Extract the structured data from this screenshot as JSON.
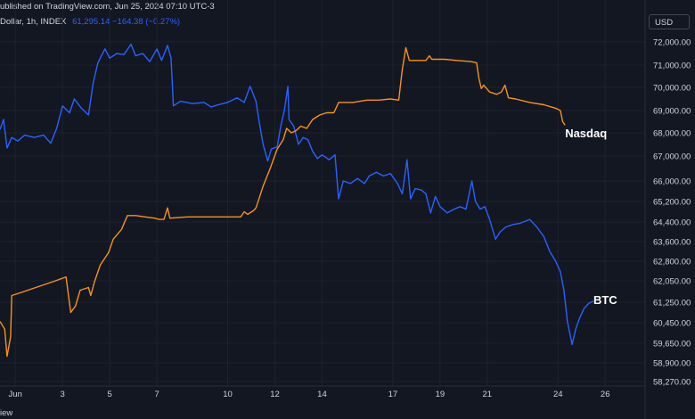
{
  "header": {
    "published": "ublished on TradingView.com, Jun 25, 2024 07:10 UTC-3",
    "instrument": "Dollar, 1h, INDEX",
    "values": "61,295.14  −164.38 (−0.27%)",
    "currency": "USD"
  },
  "footer": {
    "label": "iew"
  },
  "colors": {
    "background": "#131722",
    "grid": "#1e222d",
    "btc": "#2962ff",
    "nasdaq": "#f7931a",
    "text": "#d1d4dc"
  },
  "chart_data": {
    "type": "line",
    "title": "",
    "xlabel": "",
    "ylabel": "",
    "grid": true,
    "x_ticks": [
      "Jun",
      "3",
      "5",
      "7",
      "10",
      "12",
      "14",
      "17",
      "19",
      "21",
      "24",
      "26"
    ],
    "x_tick_days": [
      1,
      3,
      5,
      7,
      10,
      12,
      14,
      17,
      19,
      21,
      24,
      26
    ],
    "x_range_days": [
      0.35,
      26.3
    ],
    "y_ticks": [
      "72,000.00",
      "71,000.00",
      "70,000.00",
      "69,000.00",
      "68,000.00",
      "67,000.00",
      "66,000.00",
      "65,200.00",
      "64,400.00",
      "63,600.00",
      "62,800.00",
      "62,050.00",
      "61,250.00",
      "60,450.00",
      "59,650.00",
      "58,900.00",
      "58,270.00"
    ],
    "y_tick_values": [
      72000,
      71000,
      70000,
      69000,
      68000,
      67000,
      66000,
      65200,
      64400,
      63600,
      62800,
      62050,
      61250,
      60450,
      59650,
      58900,
      58270
    ],
    "annotations": [
      {
        "text": "Nasdaq",
        "x": 24.3,
        "y": 67960
      },
      {
        "text": "BTC",
        "x": 25.5,
        "y": 61320
      }
    ],
    "series": [
      {
        "key": "btc",
        "points": [
          [
            0.35,
            68150
          ],
          [
            0.5,
            68600
          ],
          [
            0.65,
            67350
          ],
          [
            0.85,
            67800
          ],
          [
            1.1,
            67650
          ],
          [
            1.4,
            67900
          ],
          [
            1.8,
            67800
          ],
          [
            2.2,
            67900
          ],
          [
            2.5,
            67550
          ],
          [
            2.75,
            68200
          ],
          [
            3.0,
            69200
          ],
          [
            3.3,
            68900
          ],
          [
            3.5,
            69500
          ],
          [
            3.8,
            69100
          ],
          [
            4.1,
            68800
          ],
          [
            4.3,
            70200
          ],
          [
            4.5,
            71100
          ],
          [
            4.8,
            71700
          ],
          [
            5.0,
            71300
          ],
          [
            5.3,
            71500
          ],
          [
            5.6,
            71450
          ],
          [
            5.9,
            71900
          ],
          [
            6.1,
            71400
          ],
          [
            6.4,
            71500
          ],
          [
            6.7,
            71150
          ],
          [
            7.0,
            71700
          ],
          [
            7.2,
            71200
          ],
          [
            7.45,
            71850
          ],
          [
            7.6,
            71300
          ],
          [
            7.7,
            69200
          ],
          [
            8.0,
            69400
          ],
          [
            8.5,
            69300
          ],
          [
            9.0,
            69350
          ],
          [
            9.3,
            69150
          ],
          [
            9.6,
            69250
          ],
          [
            10.0,
            69350
          ],
          [
            10.4,
            69550
          ],
          [
            10.7,
            69350
          ],
          [
            10.95,
            70050
          ],
          [
            11.2,
            69400
          ],
          [
            11.35,
            68400
          ],
          [
            11.5,
            67500
          ],
          [
            11.7,
            66800
          ],
          [
            11.85,
            67300
          ],
          [
            12.1,
            67400
          ],
          [
            12.25,
            68300
          ],
          [
            12.4,
            69000
          ],
          [
            12.55,
            70050
          ],
          [
            12.6,
            68600
          ],
          [
            12.8,
            68300
          ],
          [
            13.0,
            67500
          ],
          [
            13.2,
            67800
          ],
          [
            13.4,
            67700
          ],
          [
            13.6,
            67200
          ],
          [
            13.8,
            66900
          ],
          [
            14.0,
            67050
          ],
          [
            14.3,
            66850
          ],
          [
            14.55,
            67050
          ],
          [
            14.7,
            65300
          ],
          [
            14.9,
            66000
          ],
          [
            15.2,
            65900
          ],
          [
            15.5,
            66100
          ],
          [
            15.8,
            65900
          ],
          [
            16.0,
            66200
          ],
          [
            16.3,
            66350
          ],
          [
            16.6,
            66200
          ],
          [
            16.9,
            66300
          ],
          [
            17.2,
            65900
          ],
          [
            17.4,
            65500
          ],
          [
            17.6,
            66850
          ],
          [
            17.75,
            65300
          ],
          [
            17.95,
            65700
          ],
          [
            18.2,
            65650
          ],
          [
            18.4,
            65500
          ],
          [
            18.6,
            64750
          ],
          [
            18.8,
            65400
          ],
          [
            19.0,
            65000
          ],
          [
            19.3,
            64750
          ],
          [
            19.6,
            64900
          ],
          [
            19.85,
            65000
          ],
          [
            20.1,
            64900
          ],
          [
            20.35,
            66000
          ],
          [
            20.5,
            65200
          ],
          [
            20.7,
            64900
          ],
          [
            20.9,
            65000
          ],
          [
            21.1,
            64500
          ],
          [
            21.35,
            63700
          ],
          [
            21.55,
            64000
          ],
          [
            21.8,
            64200
          ],
          [
            22.1,
            64300
          ],
          [
            22.4,
            64350
          ],
          [
            22.8,
            64500
          ],
          [
            23.1,
            64200
          ],
          [
            23.4,
            63800
          ],
          [
            23.65,
            63200
          ],
          [
            23.9,
            62800
          ],
          [
            24.1,
            62400
          ],
          [
            24.25,
            61700
          ],
          [
            24.4,
            60500
          ],
          [
            24.6,
            59600
          ],
          [
            24.75,
            60200
          ],
          [
            24.9,
            60600
          ],
          [
            25.1,
            61000
          ],
          [
            25.3,
            61200
          ],
          [
            25.5,
            61295
          ]
        ]
      },
      {
        "key": "nasdaq",
        "points": [
          [
            0.35,
            60500
          ],
          [
            0.55,
            60200
          ],
          [
            0.65,
            59150
          ],
          [
            0.8,
            59900
          ],
          [
            0.85,
            61500
          ],
          [
            1.2,
            61600
          ],
          [
            1.7,
            61750
          ],
          [
            2.2,
            61900
          ],
          [
            2.7,
            62050
          ],
          [
            3.0,
            62150
          ],
          [
            3.15,
            62200
          ],
          [
            3.35,
            60850
          ],
          [
            3.55,
            61100
          ],
          [
            3.75,
            61700
          ],
          [
            4.1,
            61800
          ],
          [
            4.2,
            61500
          ],
          [
            4.35,
            62000
          ],
          [
            4.6,
            62650
          ],
          [
            4.95,
            63150
          ],
          [
            5.15,
            63700
          ],
          [
            5.5,
            64100
          ],
          [
            5.75,
            64650
          ],
          [
            6.1,
            64650
          ],
          [
            6.5,
            64600
          ],
          [
            6.9,
            64550
          ],
          [
            7.1,
            64500
          ],
          [
            7.3,
            64500
          ],
          [
            7.45,
            64950
          ],
          [
            7.55,
            64550
          ],
          [
            8.3,
            64600
          ],
          [
            9.0,
            64600
          ],
          [
            9.7,
            64600
          ],
          [
            10.3,
            64600
          ],
          [
            10.55,
            64600
          ],
          [
            10.7,
            64800
          ],
          [
            10.85,
            64700
          ],
          [
            11.1,
            64850
          ],
          [
            11.2,
            64950
          ],
          [
            11.5,
            65800
          ],
          [
            11.8,
            66500
          ],
          [
            12.1,
            67300
          ],
          [
            12.35,
            67700
          ],
          [
            12.5,
            68200
          ],
          [
            12.7,
            68000
          ],
          [
            12.9,
            68100
          ],
          [
            13.1,
            68300
          ],
          [
            13.35,
            68200
          ],
          [
            13.6,
            68600
          ],
          [
            13.9,
            68800
          ],
          [
            14.2,
            68900
          ],
          [
            14.5,
            68900
          ],
          [
            14.7,
            69350
          ],
          [
            15.3,
            69350
          ],
          [
            15.9,
            69450
          ],
          [
            16.4,
            69450
          ],
          [
            16.9,
            69500
          ],
          [
            17.25,
            69450
          ],
          [
            17.4,
            70800
          ],
          [
            17.55,
            71750
          ],
          [
            17.7,
            71200
          ],
          [
            18.1,
            71200
          ],
          [
            18.4,
            71200
          ],
          [
            18.55,
            71400
          ],
          [
            18.65,
            71250
          ],
          [
            19.2,
            71250
          ],
          [
            19.7,
            71200
          ],
          [
            20.3,
            71150
          ],
          [
            20.55,
            71100
          ],
          [
            20.65,
            70400
          ],
          [
            20.75,
            69950
          ],
          [
            20.85,
            70100
          ],
          [
            21.1,
            69800
          ],
          [
            21.4,
            69700
          ],
          [
            21.6,
            69800
          ],
          [
            21.75,
            70100
          ],
          [
            21.9,
            69550
          ],
          [
            22.2,
            69500
          ],
          [
            22.8,
            69350
          ],
          [
            23.4,
            69250
          ],
          [
            23.9,
            69100
          ],
          [
            24.1,
            69000
          ],
          [
            24.2,
            68500
          ],
          [
            24.3,
            68350
          ]
        ]
      }
    ]
  }
}
